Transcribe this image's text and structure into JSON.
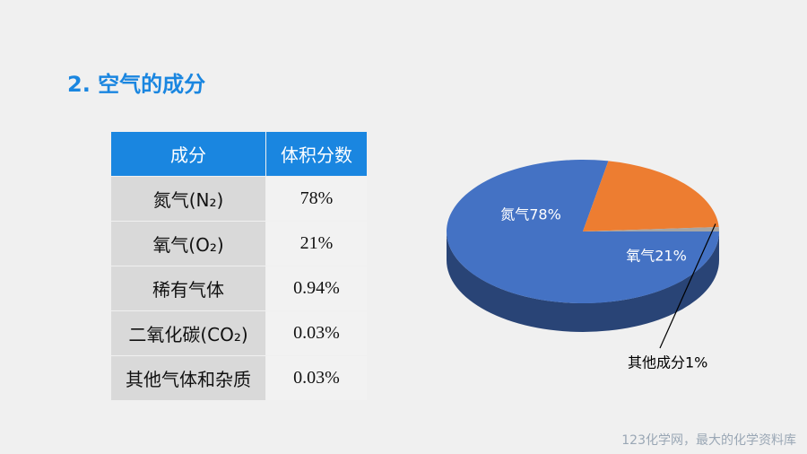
{
  "header": {
    "title": "2. 空气的成分"
  },
  "table": {
    "columns": [
      "成分",
      "体积分数"
    ],
    "rows": [
      [
        "氮气(N₂)",
        "78%"
      ],
      [
        "氧气(O₂)",
        "21%"
      ],
      [
        "稀有气体",
        "0.94%"
      ],
      [
        "二氧化碳(CO₂)",
        "0.03%"
      ],
      [
        "其他气体和杂质",
        "0.03%"
      ]
    ]
  },
  "chart_data": {
    "type": "pie",
    "values": [
      78,
      21,
      1
    ],
    "value_labels": [
      "氮气78%",
      "氧气21%",
      "其他成分1%"
    ],
    "colors": [
      "#4472c4",
      "#ed7d31",
      "#a5a5a5"
    ]
  },
  "footer": {
    "text": "123化学网，最大的化学资料库"
  }
}
